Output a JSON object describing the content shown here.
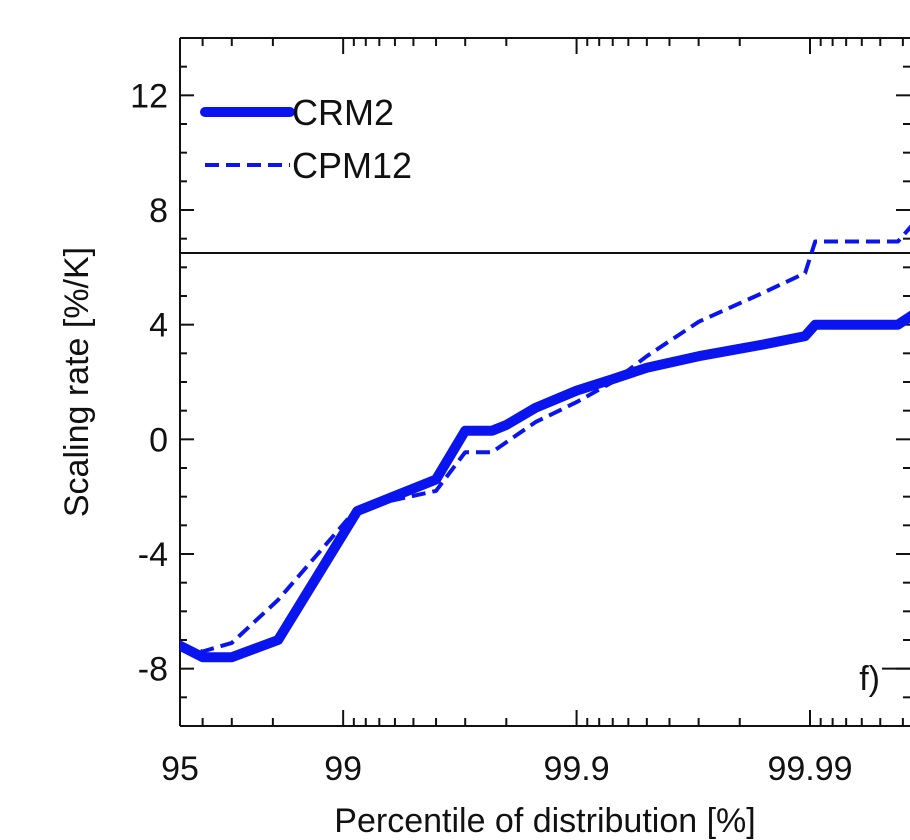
{
  "chart_data": {
    "type": "line",
    "x_scale": "exceedance-log",
    "x_axis_label": "Percentile of distribution [%]",
    "y_axis_label": "Scaling rate [%/K]",
    "x_ticks": [
      95,
      99,
      99.9,
      99.99
    ],
    "x_tick_labels": [
      "95",
      "99",
      "99.9",
      "99.99"
    ],
    "y_ticks": [
      -8,
      -4,
      0,
      4,
      8,
      12
    ],
    "y_tick_labels": [
      "-8",
      "-4",
      "0",
      "4",
      "8",
      "12"
    ],
    "xlim": [
      95,
      99.9985
    ],
    "ylim": [
      -10,
      14
    ],
    "reference_line": 6.5,
    "panel_label": "f)",
    "legend_position": "top-left",
    "grid": false,
    "series": [
      {
        "name": "CRM2",
        "color": "#0a14ee",
        "style": "solid",
        "x": [
          95,
          96,
          97,
          98.1,
          99.13,
          99.6,
          99.7,
          99.77,
          99.8,
          99.85,
          99.9,
          99.93,
          99.95,
          99.97,
          99.984,
          99.9895,
          99.9905,
          99.993,
          99.9958,
          99.9975
        ],
        "y": [
          -7.2,
          -7.6,
          -7.6,
          -7,
          -2.5,
          -1.4,
          0.3,
          0.3,
          0.5,
          1.1,
          1.7,
          2.1,
          2.5,
          2.9,
          3.3,
          3.6,
          4.0,
          4.0,
          4.0,
          5.2
        ]
      },
      {
        "name": "CPM12",
        "color": "#0a14ee",
        "style": "dashed",
        "x": [
          95,
          96,
          97,
          98.1,
          99.13,
          99.6,
          99.7,
          99.77,
          99.8,
          99.85,
          99.9,
          99.93,
          99.95,
          99.97,
          99.984,
          99.9895,
          99.9905,
          99.993,
          99.9958,
          99.9975
        ],
        "y": [
          -7.2,
          -7.4,
          -7.1,
          -5.6,
          -2.4,
          -1.8,
          -0.45,
          -0.45,
          -0.1,
          0.6,
          1.3,
          2.0,
          2.9,
          4.1,
          5.1,
          5.8,
          6.9,
          6.9,
          6.9,
          9.0
        ]
      }
    ]
  }
}
